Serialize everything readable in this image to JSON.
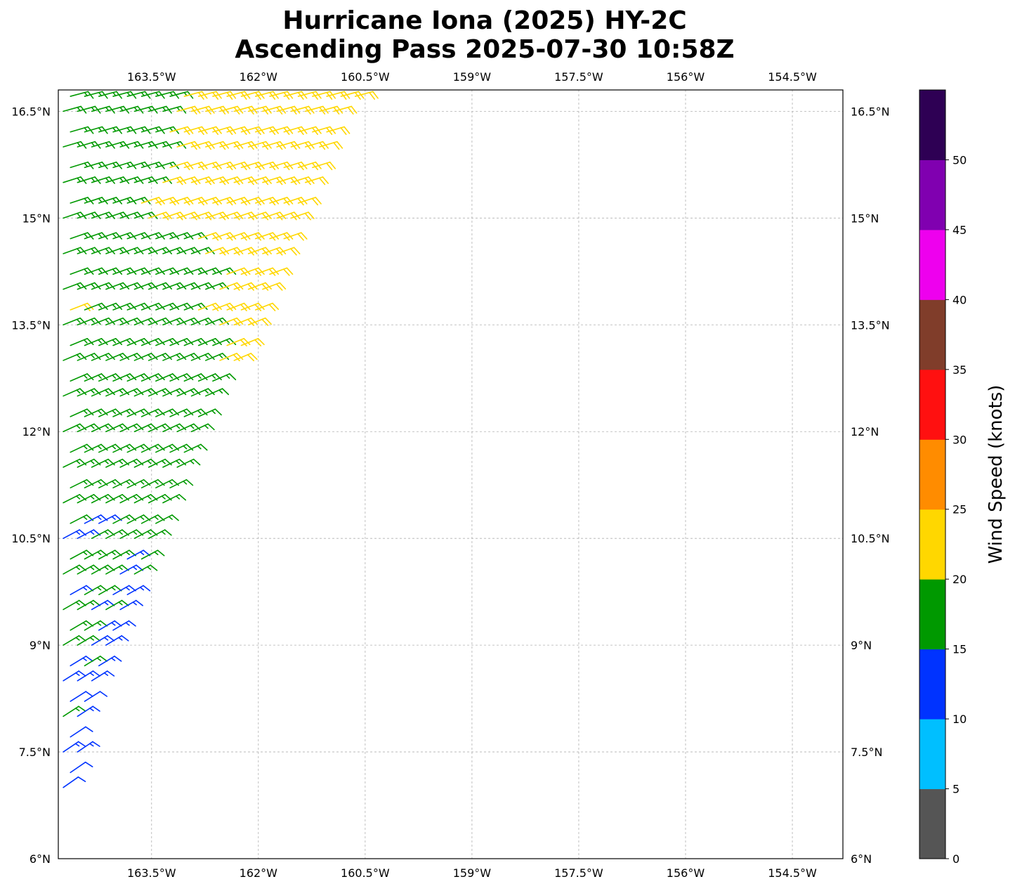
{
  "chart_data": {
    "type": "barbs-map",
    "title": "Hurricane Iona (2025) HY-2C",
    "subtitle": "Ascending Pass 2025-07-30 10:58Z",
    "xlim": [
      -164.81,
      -153.79
    ],
    "ylim": [
      6.0,
      16.8
    ],
    "grid": true,
    "lon_ticks": [
      {
        "value": -163.5,
        "label": "163.5°W"
      },
      {
        "value": -162.0,
        "label": "162°W"
      },
      {
        "value": -160.5,
        "label": "160.5°W"
      },
      {
        "value": -159.0,
        "label": "159°W"
      },
      {
        "value": -157.5,
        "label": "157.5°W"
      },
      {
        "value": -156.0,
        "label": "156°W"
      },
      {
        "value": -154.5,
        "label": "154.5°W"
      }
    ],
    "lat_ticks": [
      {
        "value": 6.0,
        "label": "6°N"
      },
      {
        "value": 7.5,
        "label": "7.5°N"
      },
      {
        "value": 9.0,
        "label": "9°N"
      },
      {
        "value": 10.5,
        "label": "10.5°N"
      },
      {
        "value": 12.0,
        "label": "12°N"
      },
      {
        "value": 13.5,
        "label": "13.5°N"
      },
      {
        "value": 15.0,
        "label": "15°N"
      },
      {
        "value": 16.5,
        "label": "16.5°N"
      }
    ],
    "colorbar": {
      "label": "Wind Speed (knots)",
      "range": [
        0,
        55
      ],
      "ticks": [
        "0",
        "5",
        "10",
        "15",
        "20",
        "25",
        "30",
        "35",
        "40",
        "45",
        "50"
      ],
      "bins": [
        {
          "min": 0,
          "max": 5,
          "color": "#555555"
        },
        {
          "min": 5,
          "max": 10,
          "color": "#00bfff"
        },
        {
          "min": 10,
          "max": 15,
          "color": "#0033ff"
        },
        {
          "min": 15,
          "max": 20,
          "color": "#009900"
        },
        {
          "min": 20,
          "max": 25,
          "color": "#ffd700"
        },
        {
          "min": 25,
          "max": 30,
          "color": "#ff8c00"
        },
        {
          "min": 30,
          "max": 35,
          "color": "#ff1010"
        },
        {
          "min": 35,
          "max": 40,
          "color": "#803d2a"
        },
        {
          "min": 40,
          "max": 45,
          "color": "#ee00ee"
        },
        {
          "min": 45,
          "max": 50,
          "color": "#8000b0"
        },
        {
          "min": 50,
          "max": 55,
          "color": "#2e0054"
        }
      ]
    },
    "barbs": {
      "units": "knots",
      "lon_start": -164.74,
      "lon_step": 0.2,
      "dir_from_north_deg": 75,
      "dir_from_south_deg": 55,
      "rows": [
        {
          "lat": 7.0,
          "runs": [
            [
              12,
              -164.6
            ]
          ]
        },
        {
          "lat": 7.25,
          "runs": [
            [
              12,
              -164.55
            ]
          ]
        },
        {
          "lat": 7.5,
          "runs": [
            [
              13,
              -164.5
            ]
          ]
        },
        {
          "lat": 7.75,
          "runs": [
            [
              12,
              -164.45
            ]
          ]
        },
        {
          "lat": 8.0,
          "runs": [
            [
              17,
              -164.65
            ],
            [
              13,
              -164.4
            ]
          ]
        },
        {
          "lat": 8.25,
          "runs": [
            [
              16,
              -164.7
            ],
            [
              12,
              -164.35
            ]
          ]
        },
        {
          "lat": 8.5,
          "runs": [
            [
              13,
              -164.25
            ]
          ]
        },
        {
          "lat": 8.75,
          "runs": [
            [
              13,
              -164.55
            ],
            [
              16,
              -164.4
            ],
            [
              13,
              -164.15
            ]
          ]
        },
        {
          "lat": 9.0,
          "runs": [
            [
              16,
              -164.4
            ],
            [
              13,
              -164.05
            ]
          ]
        },
        {
          "lat": 9.25,
          "runs": [
            [
              17,
              -164.3
            ],
            [
              13,
              -163.95
            ]
          ]
        },
        {
          "lat": 9.5,
          "runs": [
            [
              16,
              -164.5
            ],
            [
              13,
              -164.3
            ],
            [
              16,
              -164.1
            ],
            [
              13,
              -163.85
            ]
          ]
        },
        {
          "lat": 9.75,
          "runs": [
            [
              13,
              -164.6
            ],
            [
              16,
              -164.2
            ],
            [
              13,
              -163.75
            ]
          ]
        },
        {
          "lat": 10.0,
          "runs": [
            [
              16,
              -164.0
            ],
            [
              13,
              -163.8
            ],
            [
              16,
              -163.65
            ]
          ]
        },
        {
          "lat": 10.25,
          "runs": [
            [
              16,
              -163.9
            ],
            [
              13,
              -163.7
            ],
            [
              16,
              -163.5
            ]
          ]
        },
        {
          "lat": 10.5,
          "runs": [
            [
              13,
              -164.5
            ],
            [
              16,
              -163.4
            ]
          ]
        },
        {
          "lat": 10.75,
          "runs": [
            [
              16,
              -164.6
            ],
            [
              13,
              -164.2
            ],
            [
              16,
              -163.3
            ]
          ]
        },
        {
          "lat": 11.0,
          "runs": [
            [
              17,
              -163.2
            ]
          ]
        },
        {
          "lat": 11.25,
          "runs": [
            [
              17,
              -163.12
            ]
          ]
        },
        {
          "lat": 11.5,
          "runs": [
            [
              17,
              -163.05
            ]
          ]
        },
        {
          "lat": 11.75,
          "runs": [
            [
              16,
              -162.98
            ]
          ]
        },
        {
          "lat": 12.0,
          "runs": [
            [
              17,
              -162.9
            ]
          ]
        },
        {
          "lat": 12.25,
          "runs": [
            [
              17,
              -162.75
            ]
          ]
        },
        {
          "lat": 12.5,
          "runs": [
            [
              16,
              -162.6
            ]
          ]
        },
        {
          "lat": 12.75,
          "runs": [
            [
              17,
              -162.45
            ]
          ]
        },
        {
          "lat": 13.0,
          "runs": [
            [
              17,
              -162.6
            ],
            [
              22,
              -162.3
            ]
          ]
        },
        {
          "lat": 13.25,
          "runs": [
            [
              17,
              -162.5
            ],
            [
              22,
              -162.15
            ]
          ]
        },
        {
          "lat": 13.5,
          "runs": [
            [
              17,
              -162.6
            ],
            [
              22,
              -162.05
            ]
          ]
        },
        {
          "lat": 13.75,
          "runs": [
            [
              22,
              -164.6
            ],
            [
              17,
              -162.9
            ],
            [
              22,
              -161.95
            ]
          ]
        },
        {
          "lat": 14.0,
          "runs": [
            [
              17,
              -162.7
            ],
            [
              22,
              -161.85
            ]
          ]
        },
        {
          "lat": 14.25,
          "runs": [
            [
              17,
              -162.5
            ],
            [
              22,
              -161.7
            ]
          ]
        },
        {
          "lat": 14.5,
          "runs": [
            [
              17,
              -162.8
            ],
            [
              22,
              -161.6
            ]
          ]
        },
        {
          "lat": 14.75,
          "runs": [
            [
              17,
              -163.0
            ],
            [
              22,
              -161.5
            ]
          ]
        },
        {
          "lat": 15.0,
          "runs": [
            [
              17,
              -163.6
            ],
            [
              22,
              -161.4
            ]
          ]
        },
        {
          "lat": 15.25,
          "runs": [
            [
              17,
              -163.7
            ],
            [
              22,
              -161.3
            ]
          ]
        },
        {
          "lat": 15.5,
          "runs": [
            [
              17,
              -163.5
            ],
            [
              22,
              -161.2
            ]
          ]
        },
        {
          "lat": 15.75,
          "runs": [
            [
              17,
              -163.4
            ],
            [
              22,
              -161.1
            ]
          ]
        },
        {
          "lat": 16.0,
          "runs": [
            [
              17,
              -163.3
            ],
            [
              22,
              -161.0
            ]
          ]
        },
        {
          "lat": 16.25,
          "runs": [
            [
              17,
              -163.3
            ],
            [
              22,
              -160.9
            ]
          ]
        },
        {
          "lat": 16.5,
          "runs": [
            [
              17,
              -163.2
            ],
            [
              22,
              -160.8
            ]
          ]
        },
        {
          "lat": 16.75,
          "runs": [
            [
              17,
              -163.2
            ],
            [
              22,
              -160.6
            ]
          ]
        }
      ]
    }
  }
}
